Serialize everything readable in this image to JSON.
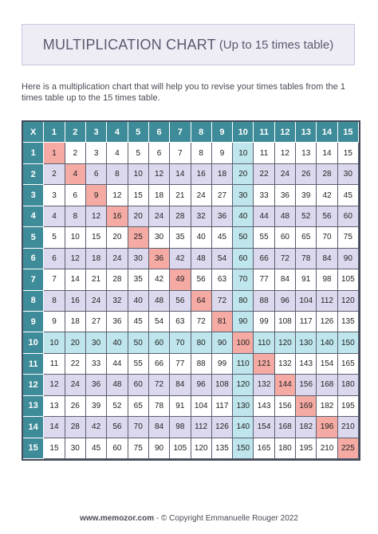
{
  "header": {
    "title": "MULTIPLICATION CHART",
    "subtitle": "(Up to 15 times table)"
  },
  "intro": "Here is a multiplication chart that will help you to revise your times tables from the 1 times table up to the 15 times table.",
  "table": {
    "corner": "X",
    "size": 15,
    "colors": {
      "header": "#3e8c99",
      "even_rows": "#dcd9ee",
      "ten_highlight": "#bfe6ec",
      "diagonal": "#f5aaa4"
    }
  },
  "footer": {
    "site": "www.memozor.com",
    "copyright": " - © Copyright Emmanuelle Rouger 2022"
  }
}
